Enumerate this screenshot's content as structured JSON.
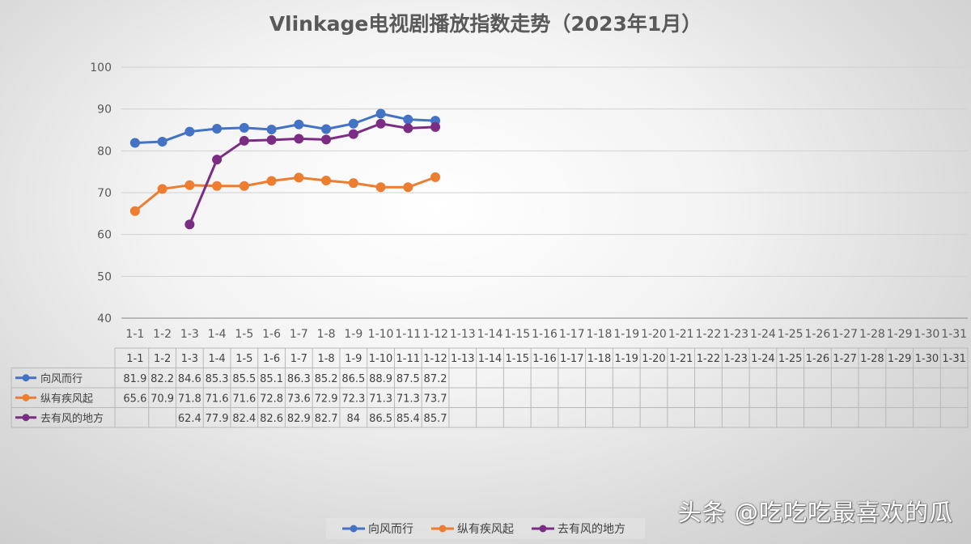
{
  "chart_data": {
    "type": "line",
    "title": "Vlinkage电视剧播放指数走势（2023年1月）",
    "categories": [
      "1-1",
      "1-2",
      "1-3",
      "1-4",
      "1-5",
      "1-6",
      "1-7",
      "1-8",
      "1-9",
      "1-10",
      "1-11",
      "1-12",
      "1-13",
      "1-14",
      "1-15",
      "1-16",
      "1-17",
      "1-18",
      "1-19",
      "1-20",
      "1-21",
      "1-22",
      "1-23",
      "1-24",
      "1-25",
      "1-26",
      "1-27",
      "1-28",
      "1-29",
      "1-30",
      "1-31"
    ],
    "ylim": [
      40,
      100
    ],
    "yticks": [
      40,
      50,
      60,
      70,
      80,
      90,
      100
    ],
    "grid": true,
    "legend_position": "bottom",
    "data_table": true,
    "series": [
      {
        "name": "向风而行",
        "color": "#4472c4",
        "values": [
          81.9,
          82.2,
          84.6,
          85.3,
          85.5,
          85.1,
          86.3,
          85.2,
          86.5,
          88.9,
          87.5,
          87.2,
          null,
          null,
          null,
          null,
          null,
          null,
          null,
          null,
          null,
          null,
          null,
          null,
          null,
          null,
          null,
          null,
          null,
          null,
          null
        ],
        "labels": [
          "81.9",
          "82.2",
          "84.6",
          "85.3",
          "85.5",
          "85.1",
          "86.3",
          "85.2",
          "86.5",
          "88.9",
          "87.5",
          "87.2",
          "",
          "",
          "",
          "",
          "",
          "",
          "",
          "",
          "",
          "",
          "",
          "",
          "",
          "",
          "",
          "",
          "",
          "",
          ""
        ]
      },
      {
        "name": "纵有疾风起",
        "color": "#ed7d31",
        "values": [
          65.6,
          70.9,
          71.8,
          71.6,
          71.6,
          72.8,
          73.6,
          72.9,
          72.3,
          71.3,
          71.3,
          73.7,
          null,
          null,
          null,
          null,
          null,
          null,
          null,
          null,
          null,
          null,
          null,
          null,
          null,
          null,
          null,
          null,
          null,
          null,
          null
        ],
        "labels": [
          "65.6",
          "70.9",
          "71.8",
          "71.6",
          "71.6",
          "72.8",
          "73.6",
          "72.9",
          "72.3",
          "71.3",
          "71.3",
          "73.7",
          "",
          "",
          "",
          "",
          "",
          "",
          "",
          "",
          "",
          "",
          "",
          "",
          "",
          "",
          "",
          "",
          "",
          "",
          ""
        ]
      },
      {
        "name": "去有风的地方",
        "color": "#7b2c83",
        "values": [
          null,
          null,
          62.4,
          77.9,
          82.4,
          82.6,
          82.9,
          82.7,
          84,
          86.5,
          85.4,
          85.7,
          null,
          null,
          null,
          null,
          null,
          null,
          null,
          null,
          null,
          null,
          null,
          null,
          null,
          null,
          null,
          null,
          null,
          null,
          null
        ],
        "labels": [
          "",
          "",
          "62.4",
          "77.9",
          "82.4",
          "82.6",
          "82.9",
          "82.7",
          "84",
          "86.5",
          "85.4",
          "85.7",
          "",
          "",
          "",
          "",
          "",
          "",
          "",
          "",
          "",
          "",
          "",
          "",
          "",
          "",
          "",
          "",
          "",
          "",
          ""
        ]
      }
    ]
  },
  "watermark": "头条 @吃吃吃最喜欢的瓜"
}
